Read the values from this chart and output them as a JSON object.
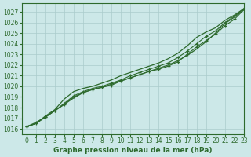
{
  "background_color": "#cce8e8",
  "grid_color": "#aacccc",
  "line_color": "#2d6a2d",
  "title": "Graphe pression niveau de la mer (hPa)",
  "xlim": [
    -0.5,
    23
  ],
  "ylim": [
    1015.5,
    1027.8
  ],
  "yticks": [
    1016,
    1017,
    1018,
    1019,
    1020,
    1021,
    1022,
    1023,
    1024,
    1025,
    1026,
    1027
  ],
  "xticks": [
    0,
    1,
    2,
    3,
    4,
    5,
    6,
    7,
    8,
    9,
    10,
    11,
    12,
    13,
    14,
    15,
    16,
    17,
    18,
    19,
    20,
    21,
    22,
    23
  ],
  "series_smooth1": [
    1016.2,
    1016.5,
    1017.1,
    1017.7,
    1018.3,
    1018.9,
    1019.4,
    1019.7,
    1019.9,
    1020.2,
    1020.5,
    1020.8,
    1021.1,
    1021.4,
    1021.7,
    1022.0,
    1022.4,
    1022.9,
    1023.5,
    1024.2,
    1025.0,
    1025.9,
    1026.5,
    1027.2
  ],
  "series_smooth2": [
    1016.2,
    1016.5,
    1017.2,
    1017.8,
    1018.8,
    1019.5,
    1019.8,
    1020.0,
    1020.3,
    1020.6,
    1021.0,
    1021.3,
    1021.6,
    1021.9,
    1022.2,
    1022.6,
    1023.1,
    1023.8,
    1024.6,
    1025.1,
    1025.5,
    1026.2,
    1026.7,
    1027.3
  ],
  "series_marker1": [
    1016.2,
    1016.6,
    1017.1,
    1017.7,
    1018.3,
    1019.0,
    1019.4,
    1019.7,
    1019.9,
    1020.1,
    1020.5,
    1020.8,
    1021.1,
    1021.4,
    1021.6,
    1021.9,
    1022.3,
    1023.0,
    1023.7,
    1024.3,
    1024.9,
    1025.7,
    1026.3,
    1027.2
  ],
  "series_marker2": [
    1016.2,
    1016.5,
    1017.1,
    1017.7,
    1018.4,
    1019.1,
    1019.5,
    1019.8,
    1020.0,
    1020.3,
    1020.6,
    1021.0,
    1021.3,
    1021.6,
    1021.9,
    1022.2,
    1022.7,
    1023.3,
    1024.0,
    1024.7,
    1025.2,
    1026.0,
    1026.6,
    1027.3
  ]
}
